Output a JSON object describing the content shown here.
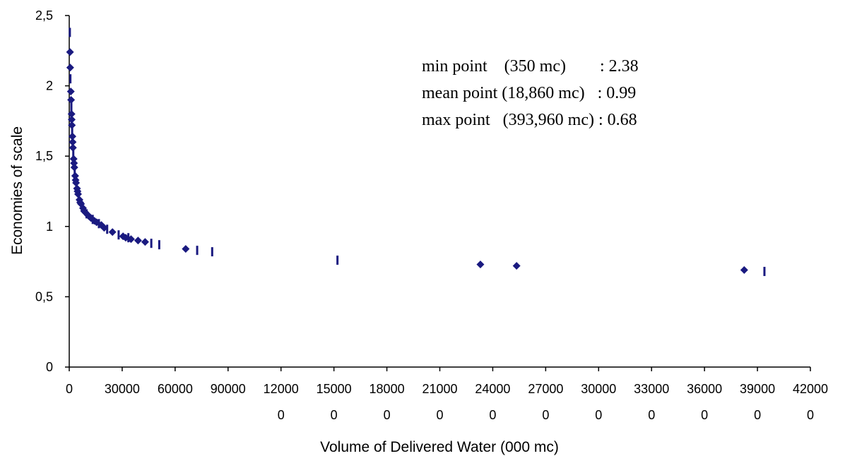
{
  "chart_data": {
    "type": "scatter",
    "xlabel": "Volume of Delivered Water (000 mc)",
    "ylabel": "Economies of scale",
    "xlim": [
      0,
      420000
    ],
    "ylim": [
      0,
      2.5
    ],
    "grid": false,
    "legend": "none",
    "marker_color": "#1a1a80",
    "x_ticks": [
      {
        "value": 0,
        "line1": "0",
        "line2": ""
      },
      {
        "value": 30000,
        "line1": "30000",
        "line2": ""
      },
      {
        "value": 60000,
        "line1": "60000",
        "line2": ""
      },
      {
        "value": 90000,
        "line1": "90000",
        "line2": ""
      },
      {
        "value": 120000,
        "line1": "12000",
        "line2": "0"
      },
      {
        "value": 150000,
        "line1": "15000",
        "line2": "0"
      },
      {
        "value": 180000,
        "line1": "18000",
        "line2": "0"
      },
      {
        "value": 210000,
        "line1": "21000",
        "line2": "0"
      },
      {
        "value": 240000,
        "line1": "24000",
        "line2": "0"
      },
      {
        "value": 270000,
        "line1": "27000",
        "line2": "0"
      },
      {
        "value": 300000,
        "line1": "30000",
        "line2": "0"
      },
      {
        "value": 330000,
        "line1": "33000",
        "line2": "0"
      },
      {
        "value": 360000,
        "line1": "36000",
        "line2": "0"
      },
      {
        "value": 390000,
        "line1": "39000",
        "line2": "0"
      },
      {
        "value": 420000,
        "line1": "42000",
        "line2": "0"
      }
    ],
    "y_ticks": [
      {
        "value": 0,
        "label": "0"
      },
      {
        "value": 0.5,
        "label": "0,5"
      },
      {
        "value": 1,
        "label": "1"
      },
      {
        "value": 1.5,
        "label": "1,5"
      },
      {
        "value": 2,
        "label": "2"
      },
      {
        "value": 2.5,
        "label": "2,5"
      }
    ],
    "annotations": [
      {
        "name": "min",
        "text": "min point    (350 mc)        : 2.38"
      },
      {
        "name": "mean",
        "text": "mean point (18,860 mc)   : 0.99"
      },
      {
        "name": "max",
        "text": "max point   (393,960 mc) : 0.68"
      }
    ],
    "points": [
      {
        "x": 350,
        "y": 2.38,
        "m": "bar"
      },
      {
        "x": 450,
        "y": 2.24,
        "m": "d"
      },
      {
        "x": 550,
        "y": 2.13,
        "m": "d"
      },
      {
        "x": 650,
        "y": 2.05,
        "m": "bar"
      },
      {
        "x": 900,
        "y": 1.96,
        "m": "d"
      },
      {
        "x": 1050,
        "y": 1.9,
        "m": "d"
      },
      {
        "x": 1200,
        "y": 1.85,
        "m": "bar"
      },
      {
        "x": 1300,
        "y": 1.8,
        "m": "d"
      },
      {
        "x": 1400,
        "y": 1.76,
        "m": "d"
      },
      {
        "x": 1500,
        "y": 1.72,
        "m": "d"
      },
      {
        "x": 1650,
        "y": 1.68,
        "m": "bar"
      },
      {
        "x": 1800,
        "y": 1.64,
        "m": "d"
      },
      {
        "x": 1950,
        "y": 1.6,
        "m": "d"
      },
      {
        "x": 2100,
        "y": 1.56,
        "m": "d"
      },
      {
        "x": 2300,
        "y": 1.52,
        "m": "bar"
      },
      {
        "x": 2500,
        "y": 1.48,
        "m": "d"
      },
      {
        "x": 2700,
        "y": 1.45,
        "m": "d"
      },
      {
        "x": 2900,
        "y": 1.42,
        "m": "d"
      },
      {
        "x": 3100,
        "y": 1.39,
        "m": "bar"
      },
      {
        "x": 3350,
        "y": 1.36,
        "m": "d"
      },
      {
        "x": 3600,
        "y": 1.33,
        "m": "d"
      },
      {
        "x": 3850,
        "y": 1.31,
        "m": "d"
      },
      {
        "x": 4100,
        "y": 1.29,
        "m": "bar"
      },
      {
        "x": 4400,
        "y": 1.27,
        "m": "d"
      },
      {
        "x": 4700,
        "y": 1.25,
        "m": "d"
      },
      {
        "x": 5000,
        "y": 1.23,
        "m": "d"
      },
      {
        "x": 5400,
        "y": 1.21,
        "m": "bar"
      },
      {
        "x": 5800,
        "y": 1.19,
        "m": "d"
      },
      {
        "x": 6200,
        "y": 1.17,
        "m": "d"
      },
      {
        "x": 6700,
        "y": 1.16,
        "m": "d"
      },
      {
        "x": 7200,
        "y": 1.14,
        "m": "bar"
      },
      {
        "x": 7800,
        "y": 1.13,
        "m": "d"
      },
      {
        "x": 8400,
        "y": 1.11,
        "m": "d"
      },
      {
        "x": 9100,
        "y": 1.1,
        "m": "d"
      },
      {
        "x": 9800,
        "y": 1.09,
        "m": "bar"
      },
      {
        "x": 10600,
        "y": 1.08,
        "m": "d"
      },
      {
        "x": 11400,
        "y": 1.07,
        "m": "d"
      },
      {
        "x": 12300,
        "y": 1.06,
        "m": "d"
      },
      {
        "x": 13300,
        "y": 1.05,
        "m": "bar"
      },
      {
        "x": 14300,
        "y": 1.04,
        "m": "d"
      },
      {
        "x": 15500,
        "y": 1.03,
        "m": "d"
      },
      {
        "x": 16800,
        "y": 1.02,
        "m": "bar"
      },
      {
        "x": 18200,
        "y": 1.01,
        "m": "d"
      },
      {
        "x": 19800,
        "y": 0.99,
        "m": "d"
      },
      {
        "x": 21500,
        "y": 0.98,
        "m": "bar"
      },
      {
        "x": 24500,
        "y": 0.96,
        "m": "d"
      },
      {
        "x": 28000,
        "y": 0.94,
        "m": "bar"
      },
      {
        "x": 30500,
        "y": 0.93,
        "m": "d"
      },
      {
        "x": 32000,
        "y": 0.92,
        "m": "d"
      },
      {
        "x": 33500,
        "y": 0.92,
        "m": "bar"
      },
      {
        "x": 35000,
        "y": 0.91,
        "m": "d"
      },
      {
        "x": 39000,
        "y": 0.9,
        "m": "d"
      },
      {
        "x": 43000,
        "y": 0.89,
        "m": "d"
      },
      {
        "x": 46500,
        "y": 0.88,
        "m": "bar"
      },
      {
        "x": 51000,
        "y": 0.87,
        "m": "bar"
      },
      {
        "x": 66000,
        "y": 0.84,
        "m": "d"
      },
      {
        "x": 72500,
        "y": 0.83,
        "m": "bar"
      },
      {
        "x": 81000,
        "y": 0.82,
        "m": "bar"
      },
      {
        "x": 152000,
        "y": 0.76,
        "m": "bar"
      },
      {
        "x": 233000,
        "y": 0.73,
        "m": "d"
      },
      {
        "x": 253500,
        "y": 0.72,
        "m": "d"
      },
      {
        "x": 382500,
        "y": 0.69,
        "m": "d"
      },
      {
        "x": 393960,
        "y": 0.68,
        "m": "bar"
      }
    ]
  }
}
